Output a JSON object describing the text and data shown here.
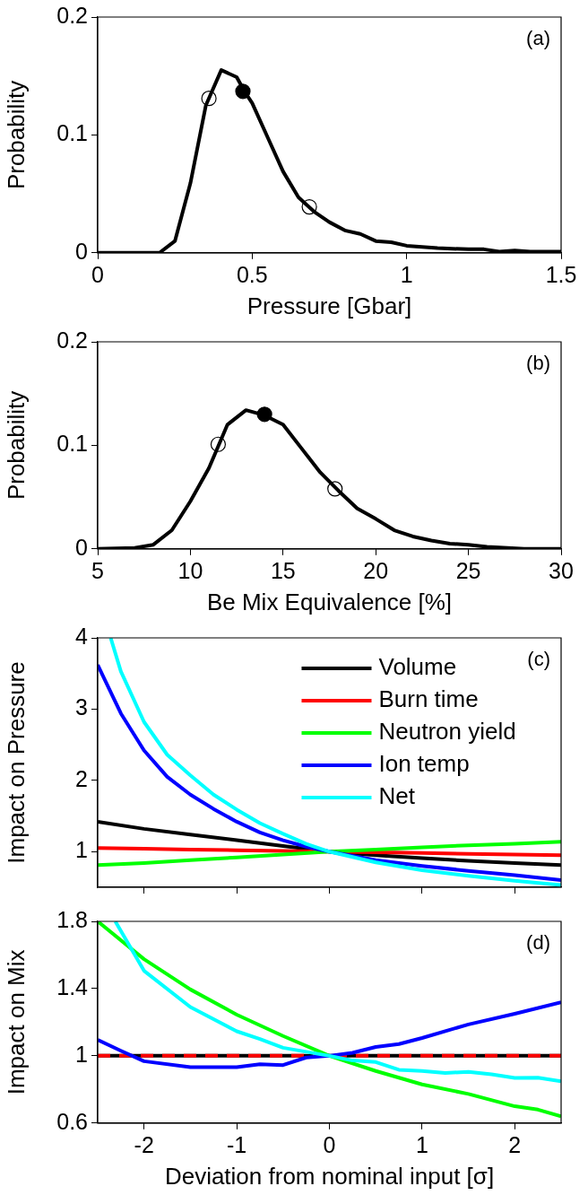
{
  "chart_data": [
    {
      "type": "line",
      "xlabel": "Pressure [Gbar]",
      "ylabel": "Probability",
      "annotations": [
        "(a)"
      ],
      "xlim": [
        0,
        1.5
      ],
      "xticks": [
        0,
        0.5,
        1,
        1.5
      ],
      "ylim": [
        0,
        0.2
      ],
      "yticks": [
        0,
        0.1,
        0.2
      ],
      "grid": false,
      "legend": false,
      "marker": "none",
      "line_style": "solid",
      "series": [
        {
          "color": "#000000",
          "x": [
            0,
            0.2,
            0.25,
            0.3,
            0.35,
            0.4,
            0.45,
            0.475,
            0.5,
            0.55,
            0.6,
            0.65,
            0.7,
            0.75,
            0.8,
            0.85,
            0.9,
            0.95,
            1.0,
            1.1,
            1.2,
            1.25,
            1.3,
            1.35,
            1.4,
            1.5
          ],
          "values": [
            0,
            0,
            0.01,
            0.059,
            0.125,
            0.155,
            0.149,
            0.137,
            0.127,
            0.098,
            0.069,
            0.047,
            0.035,
            0.026,
            0.019,
            0.016,
            0.01,
            0.009,
            0.006,
            0.004,
            0.003,
            0.003,
            0.001,
            0.002,
            0.001,
            0.001
          ]
        },
        {
          "type": "scatter",
          "color": "#000000",
          "marker": "circle-open",
          "x": [
            0.36,
            0.685
          ],
          "values": [
            0.131,
            0.039
          ]
        },
        {
          "type": "scatter",
          "color": "#000000",
          "marker": "circle",
          "x": [
            0.47
          ],
          "values": [
            0.137
          ]
        }
      ]
    },
    {
      "type": "line",
      "xlabel": "Be Mix Equivalence [%]",
      "ylabel": "Probability",
      "annotations": [
        "(b)"
      ],
      "xlim": [
        5,
        30
      ],
      "xticks": [
        5,
        10,
        15,
        20,
        25,
        30
      ],
      "ylim": [
        0,
        0.2
      ],
      "yticks": [
        0,
        0.1,
        0.2
      ],
      "grid": false,
      "legend": false,
      "marker": "none",
      "line_style": "solid",
      "series": [
        {
          "color": "#000000",
          "x": [
            5,
            7,
            8,
            9,
            10,
            11,
            12,
            13,
            14,
            15,
            16,
            17,
            18,
            19,
            20,
            21,
            22,
            23,
            24,
            25,
            26,
            28,
            30
          ],
          "values": [
            0,
            0.001,
            0.004,
            0.018,
            0.046,
            0.078,
            0.12,
            0.134,
            0.129,
            0.12,
            0.097,
            0.074,
            0.056,
            0.039,
            0.029,
            0.018,
            0.012,
            0.008,
            0.005,
            0.004,
            0.002,
            0,
            0
          ]
        },
        {
          "type": "scatter",
          "color": "#000000",
          "marker": "circle-open",
          "x": [
            11.5,
            17.8
          ],
          "values": [
            0.101,
            0.058
          ]
        },
        {
          "type": "scatter",
          "color": "#000000",
          "marker": "circle",
          "x": [
            14.0
          ],
          "values": [
            0.13
          ]
        }
      ]
    },
    {
      "type": "line",
      "ylabel": "Impact on Pressure",
      "annotations": [
        "(c)"
      ],
      "xlim": [
        -2.5,
        2.5
      ],
      "xticks": [
        -2,
        -1,
        0,
        1,
        2
      ],
      "ylim": [
        0.5,
        4
      ],
      "yticks": [
        1,
        2,
        3,
        4
      ],
      "tick_labels": "y",
      "grid": false,
      "legend": "top right",
      "marker": "none",
      "line_style": "solid",
      "series": [
        {
          "name": "Volume",
          "color": "#000000",
          "x": [
            -2.5,
            -2,
            -1.5,
            -1,
            -0.5,
            0,
            0.5,
            1,
            1.5,
            2,
            2.5
          ],
          "values": [
            1.42,
            1.32,
            1.24,
            1.16,
            1.08,
            1.0,
            0.95,
            0.91,
            0.87,
            0.84,
            0.81
          ]
        },
        {
          "name": "Burn time",
          "color": "#ff0000",
          "x": [
            -2.5,
            -2,
            -1.5,
            -1,
            -0.5,
            0,
            0.5,
            1,
            1.5,
            2,
            2.5
          ],
          "values": [
            1.05,
            1.04,
            1.03,
            1.02,
            1.01,
            1.0,
            0.99,
            0.98,
            0.97,
            0.96,
            0.95
          ]
        },
        {
          "name": "Neutron yield",
          "color": "#00ff00",
          "x": [
            -2.5,
            -2,
            -1.5,
            -1,
            -0.5,
            0,
            0.5,
            1,
            1.5,
            2,
            2.5
          ],
          "values": [
            0.81,
            0.84,
            0.88,
            0.92,
            0.96,
            1.0,
            1.03,
            1.06,
            1.09,
            1.11,
            1.14
          ]
        },
        {
          "name": "Ion temp",
          "color": "#0000ff",
          "x": [
            -2.5,
            -2.25,
            -2,
            -1.75,
            -1.5,
            -1.25,
            -1,
            -0.75,
            -0.5,
            -0.25,
            0,
            0.5,
            1,
            1.5,
            2,
            2.5
          ],
          "values": [
            3.62,
            2.94,
            2.42,
            2.05,
            1.8,
            1.6,
            1.42,
            1.27,
            1.16,
            1.07,
            1.0,
            0.88,
            0.8,
            0.73,
            0.67,
            0.6
          ]
        },
        {
          "name": "Net",
          "color": "#00ffff",
          "x": [
            -2.36,
            -2.25,
            -2,
            -1.75,
            -1.5,
            -1.25,
            -1,
            -0.75,
            -0.5,
            -0.25,
            0,
            0.5,
            1,
            1.5,
            2,
            2.5
          ],
          "values": [
            4.0,
            3.53,
            2.82,
            2.36,
            2.07,
            1.8,
            1.59,
            1.4,
            1.25,
            1.11,
            1.0,
            0.85,
            0.74,
            0.66,
            0.59,
            0.53
          ]
        }
      ]
    },
    {
      "type": "line",
      "xlabel": "Deviation from nominal input [σ]",
      "ylabel": "Impact on Mix",
      "annotations": [
        "(d)"
      ],
      "xlim": [
        -2.5,
        2.5
      ],
      "xticks": [
        -2,
        -1,
        0,
        1,
        2
      ],
      "ylim": [
        0.6,
        1.8
      ],
      "yticks": [
        0.6,
        1,
        1.4,
        1.8
      ],
      "grid": false,
      "legend": false,
      "marker": "none",
      "series": [
        {
          "color": "#000000",
          "line_style": "solid",
          "x": [
            -2.5,
            2.5
          ],
          "values": [
            1.0,
            1.0
          ]
        },
        {
          "color": "#ff0000",
          "line_style": "dashed",
          "x": [
            -2.5,
            2.5
          ],
          "values": [
            1.0,
            1.0
          ]
        },
        {
          "color": "#00ff00",
          "x": [
            -2.5,
            -2,
            -1.5,
            -1,
            -0.5,
            0,
            0.5,
            1,
            1.5,
            2,
            2.25,
            2.5
          ],
          "values": [
            1.8,
            1.575,
            1.395,
            1.245,
            1.118,
            1.0,
            0.91,
            0.83,
            0.773,
            0.7,
            0.68,
            0.64
          ]
        },
        {
          "color": "#0000ff",
          "x": [
            -2.5,
            -2.25,
            -2,
            -1.5,
            -1,
            -0.75,
            -0.5,
            -0.25,
            0,
            0.25,
            0.5,
            0.75,
            1,
            1.5,
            2,
            2.5
          ],
          "values": [
            1.095,
            1.03,
            0.968,
            0.933,
            0.933,
            0.95,
            0.945,
            0.99,
            1.0,
            1.018,
            1.053,
            1.07,
            1.106,
            1.187,
            1.25,
            1.319
          ]
        },
        {
          "color": "#00ffff",
          "x": [
            -2.31,
            -2,
            -1.5,
            -1,
            -0.75,
            -0.5,
            0,
            0.25,
            0.5,
            0.75,
            1,
            1.25,
            1.5,
            1.75,
            2,
            2.25,
            2.5
          ],
          "values": [
            1.8,
            1.506,
            1.29,
            1.146,
            1.1,
            1.048,
            1.0,
            0.972,
            0.963,
            0.917,
            0.91,
            0.898,
            0.905,
            0.89,
            0.868,
            0.87,
            0.848
          ]
        }
      ]
    }
  ]
}
